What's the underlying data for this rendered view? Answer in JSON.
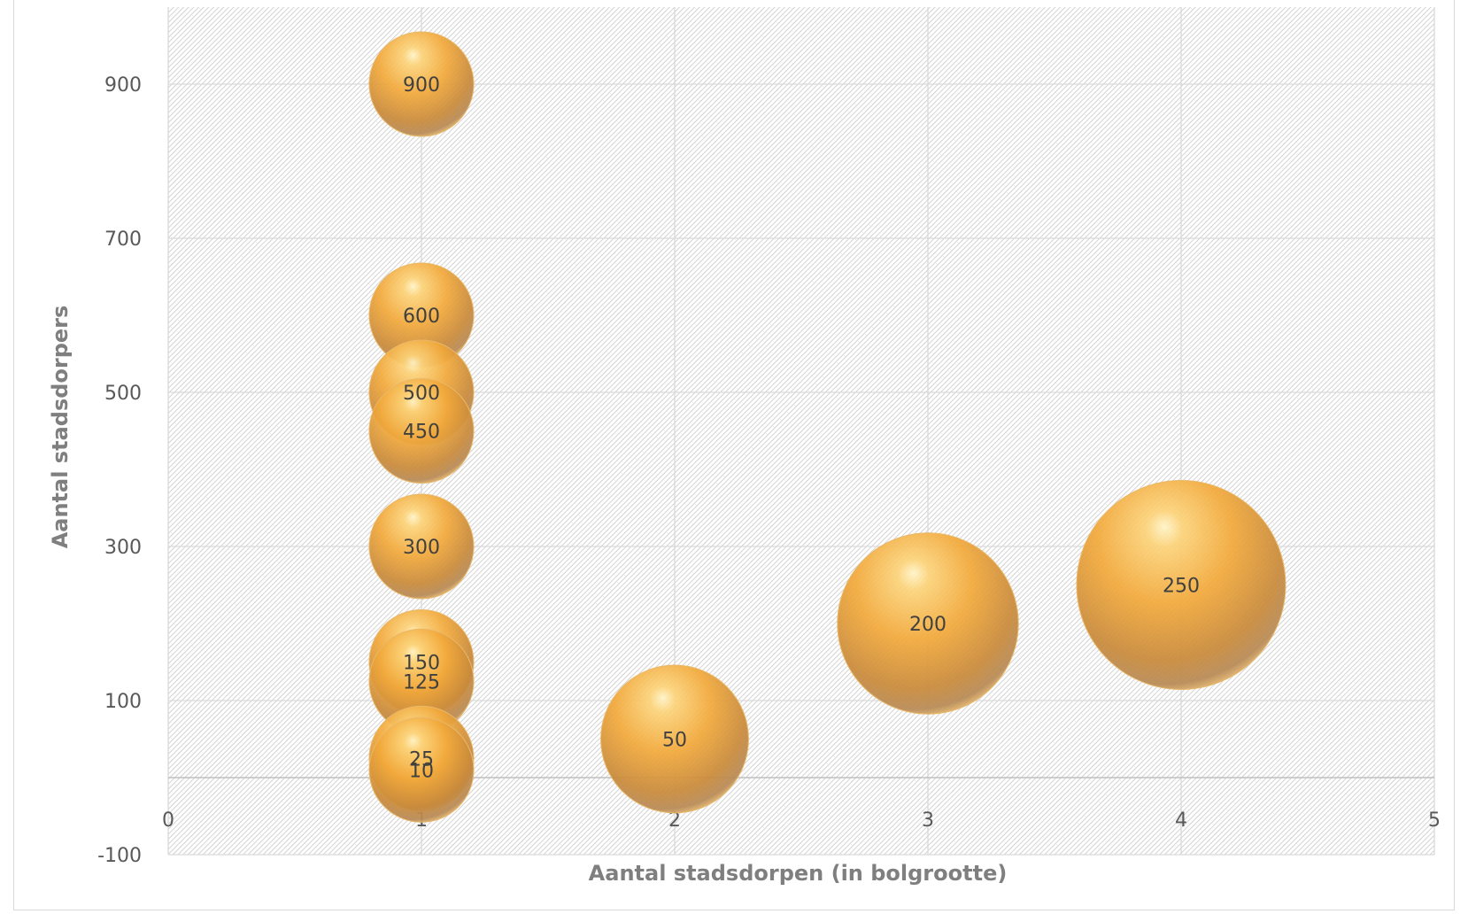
{
  "chart_data": {
    "type": "bubble",
    "title": "",
    "xlabel": "Aantal stadsdorpen (in bolgrootte)",
    "ylabel": "Aantal stadsdorpers",
    "xlim": [
      0,
      5
    ],
    "ylim": [
      -100,
      1000
    ],
    "x_ticks": [
      0,
      1,
      2,
      3,
      4,
      5
    ],
    "y_ticks": [
      -100,
      100,
      300,
      500,
      700,
      900
    ],
    "grid": true,
    "legend": "none",
    "bubble_color": "#F2A93B",
    "points": [
      {
        "x": 1,
        "y": 900,
        "size": 1,
        "label": "900"
      },
      {
        "x": 1,
        "y": 600,
        "size": 1,
        "label": "600"
      },
      {
        "x": 1,
        "y": 500,
        "size": 1,
        "label": "500"
      },
      {
        "x": 1,
        "y": 450,
        "size": 1,
        "label": "450"
      },
      {
        "x": 1,
        "y": 300,
        "size": 1,
        "label": "300"
      },
      {
        "x": 1,
        "y": 150,
        "size": 1,
        "label": "150"
      },
      {
        "x": 1,
        "y": 125,
        "size": 1,
        "label": "125"
      },
      {
        "x": 1,
        "y": 25,
        "size": 1,
        "label": "25"
      },
      {
        "x": 1,
        "y": 10,
        "size": 1,
        "label": "10"
      },
      {
        "x": 2,
        "y": 50,
        "size": 2,
        "label": "50"
      },
      {
        "x": 3,
        "y": 200,
        "size": 3,
        "label": "200"
      },
      {
        "x": 4,
        "y": 250,
        "size": 4,
        "label": "250"
      }
    ]
  }
}
